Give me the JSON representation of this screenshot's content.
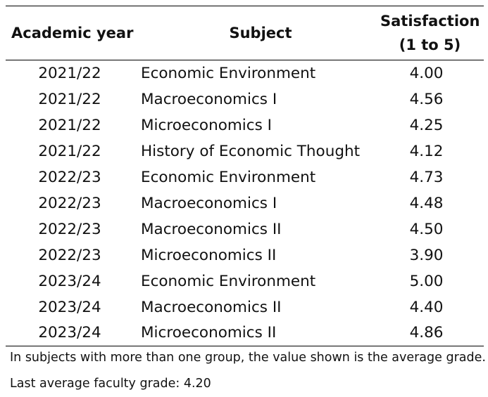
{
  "table": {
    "headers": {
      "year": "Academic year",
      "subject": "Subject",
      "satisfaction_line1": "Satisfaction",
      "satisfaction_line2": "(1 to 5)"
    },
    "rows": [
      {
        "year": "2021/22",
        "subject": "Economic Environment",
        "satisfaction": "4.00"
      },
      {
        "year": "2021/22",
        "subject": "Macroeconomics I",
        "satisfaction": "4.56"
      },
      {
        "year": "2021/22",
        "subject": "Microeconomics I",
        "satisfaction": "4.25"
      },
      {
        "year": "2021/22",
        "subject": "History of Economic Thought",
        "satisfaction": "4.12"
      },
      {
        "year": "2022/23",
        "subject": "Economic Environment",
        "satisfaction": "4.73"
      },
      {
        "year": "2022/23",
        "subject": "Macroeconomics I",
        "satisfaction": "4.48"
      },
      {
        "year": "2022/23",
        "subject": "Macroeconomics II",
        "satisfaction": "4.50"
      },
      {
        "year": "2022/23",
        "subject": "Microeconomics II",
        "satisfaction": "3.90"
      },
      {
        "year": "2023/24",
        "subject": "Economic Environment",
        "satisfaction": "5.00"
      },
      {
        "year": "2023/24",
        "subject": "Macroeconomics II",
        "satisfaction": "4.40"
      },
      {
        "year": "2023/24",
        "subject": "Microeconomics II",
        "satisfaction": "4.86"
      }
    ]
  },
  "notes": {
    "line1": "In subjects with more than one group, the value shown is the average grade.",
    "line2": "Last average faculty grade: 4.20"
  }
}
